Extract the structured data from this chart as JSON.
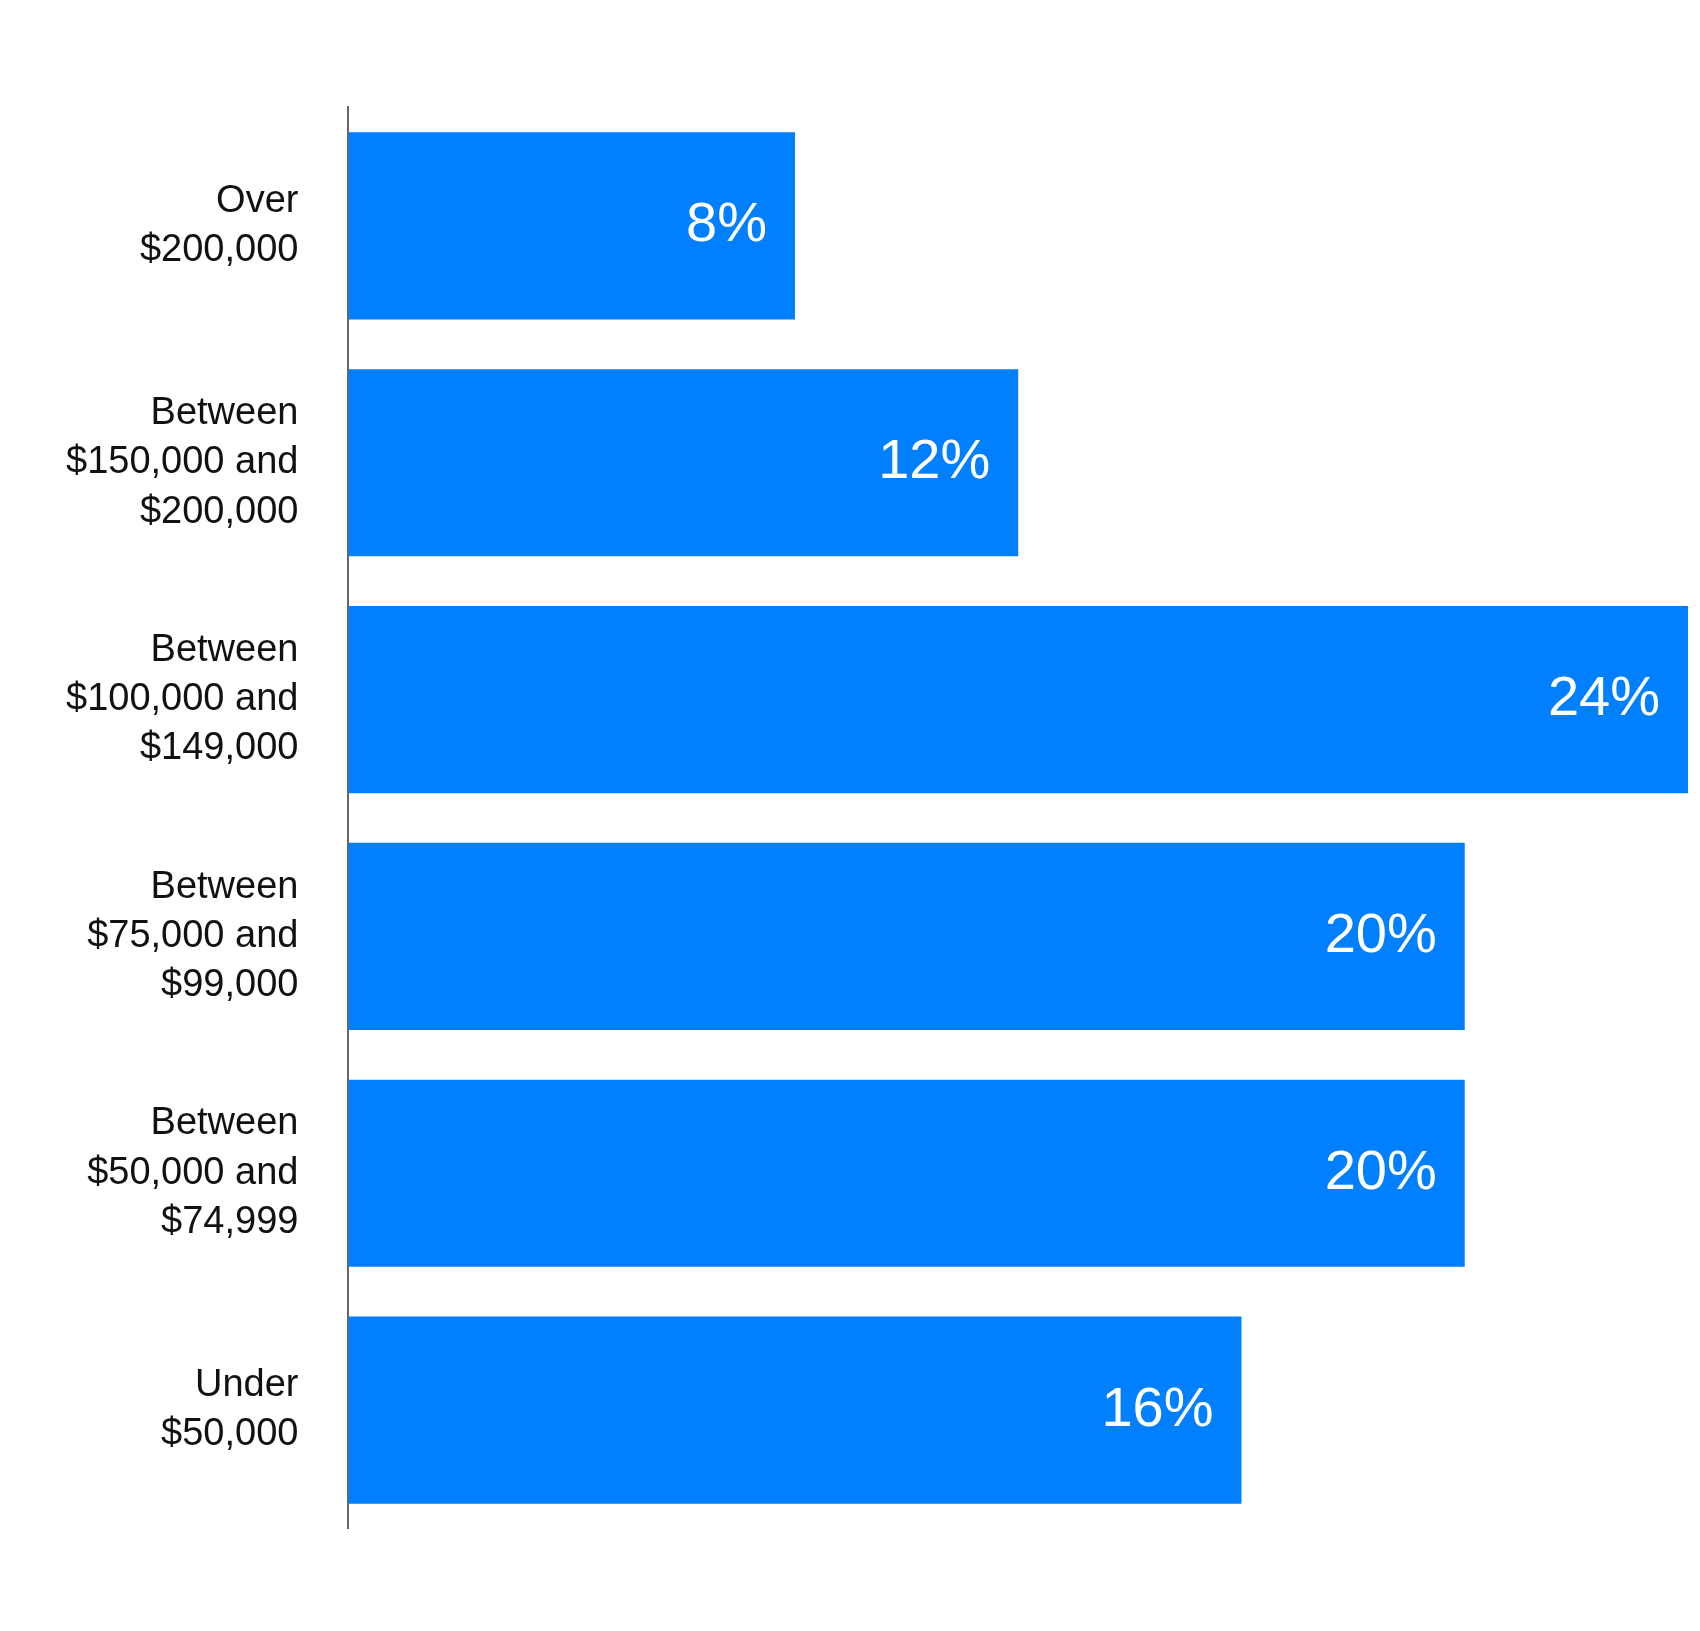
{
  "chart_data": {
    "type": "bar",
    "orientation": "horizontal",
    "categories": [
      "Over $200,000",
      "Between $150,000 and $200,000",
      "Between $100,000 and $149,000",
      "Between $75,000 and $99,000",
      "Between $50,000 and $74,999",
      "Under $50,000"
    ],
    "values": [
      8,
      12,
      24,
      20,
      20,
      16
    ],
    "value_labels": [
      "8%",
      "12%",
      "24%",
      "20%",
      "20%",
      "16%"
    ],
    "color": "#007fff",
    "xlim": [
      0,
      24
    ],
    "tick_labels": "y"
  }
}
